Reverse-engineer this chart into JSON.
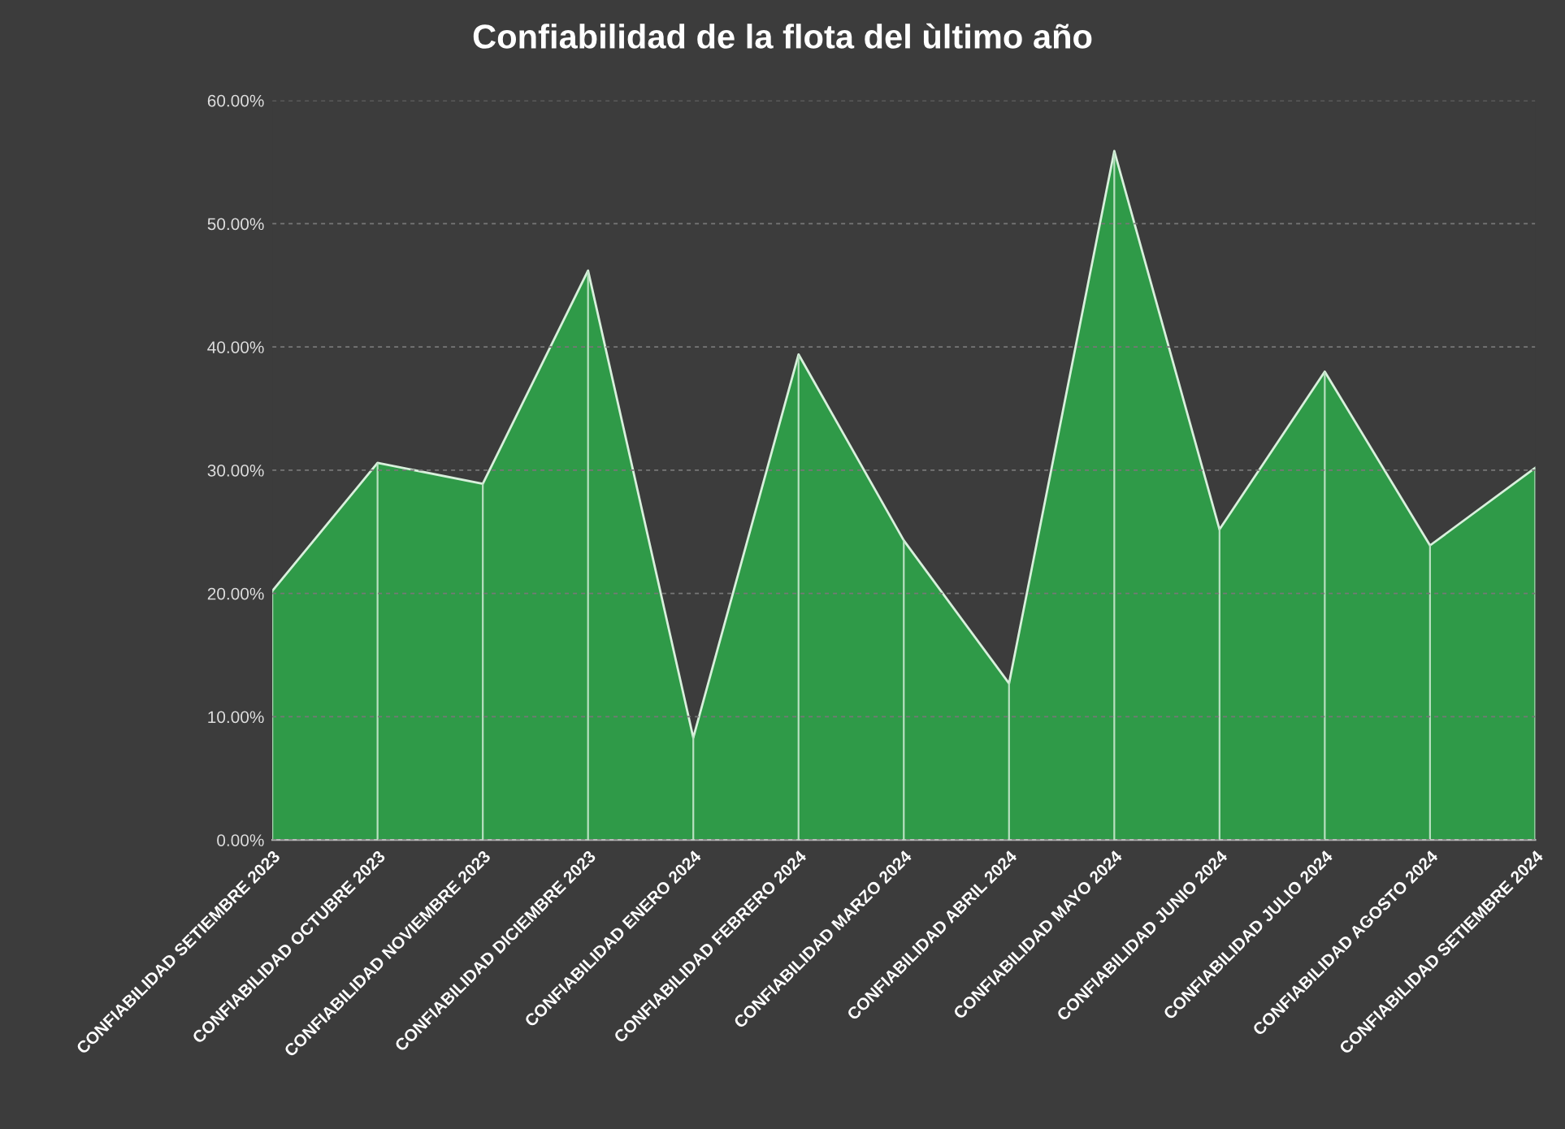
{
  "chart_data": {
    "type": "area",
    "title": "Confiabilidad de la flota del ùltimo año",
    "categories": [
      "CONFIABILIDAD SETIEMBRE 2023",
      "CONFIABILIDAD OCTUBRE 2023",
      "CONFIABILIDAD NOVIEMBRE 2023",
      "CONFIABILIDAD DICIEMBRE 2023",
      "CONFIABILIDAD ENERO 2024",
      "CONFIABILIDAD FEBRERO 2024",
      "CONFIABILIDAD MARZO 2024",
      "CONFIABILIDAD ABRIL 2024",
      "CONFIABILIDAD MAYO 2024",
      "CONFIABILIDAD JUNIO 2024",
      "CONFIABILIDAD JULIO 2024",
      "CONFIABILIDAD AGOSTO 2024",
      "CONFIABILIDAD SETIEMBRE 2024"
    ],
    "series": [
      {
        "color": "#2f9a48",
        "values": [
          20.2,
          30.6,
          28.9,
          46.2,
          8.3,
          39.4,
          24.3,
          12.7,
          55.9,
          25.2,
          38.0,
          23.9,
          30.2
        ]
      }
    ],
    "ylim": [
      0,
      60
    ],
    "yticks": [
      {
        "value": 0,
        "label": "0.00%"
      },
      {
        "value": 10,
        "label": "10.00%"
      },
      {
        "value": 20,
        "label": "20.00%"
      },
      {
        "value": 30,
        "label": "30.00%"
      },
      {
        "value": 40,
        "label": "40.00%"
      },
      {
        "value": 50,
        "label": "50.00%"
      },
      {
        "value": 60,
        "label": "60.00%"
      }
    ],
    "grid": true,
    "legend": false
  }
}
